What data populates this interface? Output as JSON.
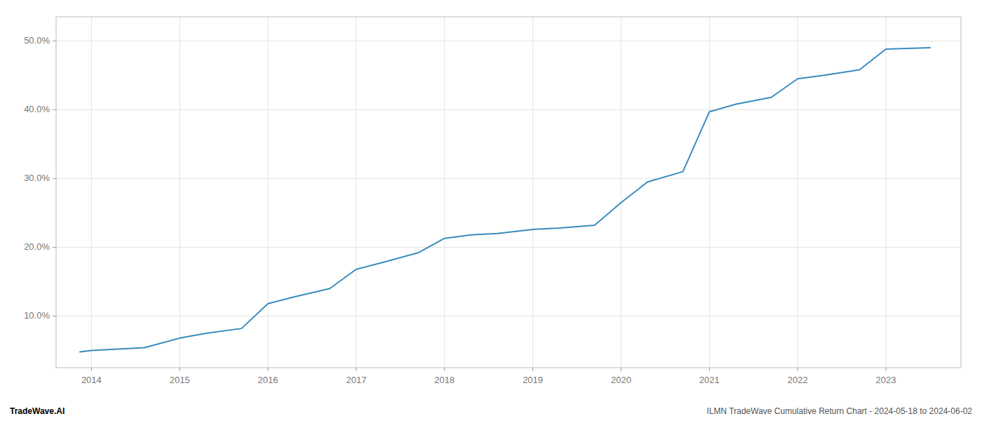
{
  "chart_data": {
    "type": "line",
    "x": [
      2013.87,
      2014.0,
      2014.3,
      2014.6,
      2015.0,
      2015.3,
      2015.7,
      2016.0,
      2016.3,
      2016.7,
      2017.0,
      2017.3,
      2017.7,
      2018.0,
      2018.3,
      2018.6,
      2019.0,
      2019.3,
      2019.7,
      2020.0,
      2020.3,
      2020.7,
      2021.0,
      2021.3,
      2021.7,
      2022.0,
      2022.3,
      2022.7,
      2023.0,
      2023.5
    ],
    "values": [
      0.048,
      0.05,
      0.052,
      0.054,
      0.068,
      0.075,
      0.082,
      0.118,
      0.128,
      0.14,
      0.168,
      0.178,
      0.192,
      0.213,
      0.218,
      0.22,
      0.226,
      0.228,
      0.232,
      0.265,
      0.295,
      0.31,
      0.397,
      0.408,
      0.418,
      0.445,
      0.45,
      0.458,
      0.488,
      0.49
    ],
    "color": "#3a8bbf",
    "xlim": [
      2013.6,
      2023.85
    ],
    "xticks": [
      2014,
      2015,
      2016,
      2017,
      2018,
      2019,
      2020,
      2021,
      2022,
      2023
    ],
    "ylim": [
      0.025,
      0.535
    ],
    "yticks": [
      {
        "value": 0.1,
        "label": "10.0%"
      },
      {
        "value": 0.2,
        "label": "20.0%"
      },
      {
        "value": 0.3,
        "label": "30.0%"
      },
      {
        "value": 0.4,
        "label": "40.0%"
      },
      {
        "value": 0.5,
        "label": "50.0%"
      }
    ],
    "grid": true,
    "annotations": [
      "TradeWave.AI",
      "ILMN TradeWave Cumulative Return Chart - 2024-05-18 to 2024-06-02"
    ]
  }
}
